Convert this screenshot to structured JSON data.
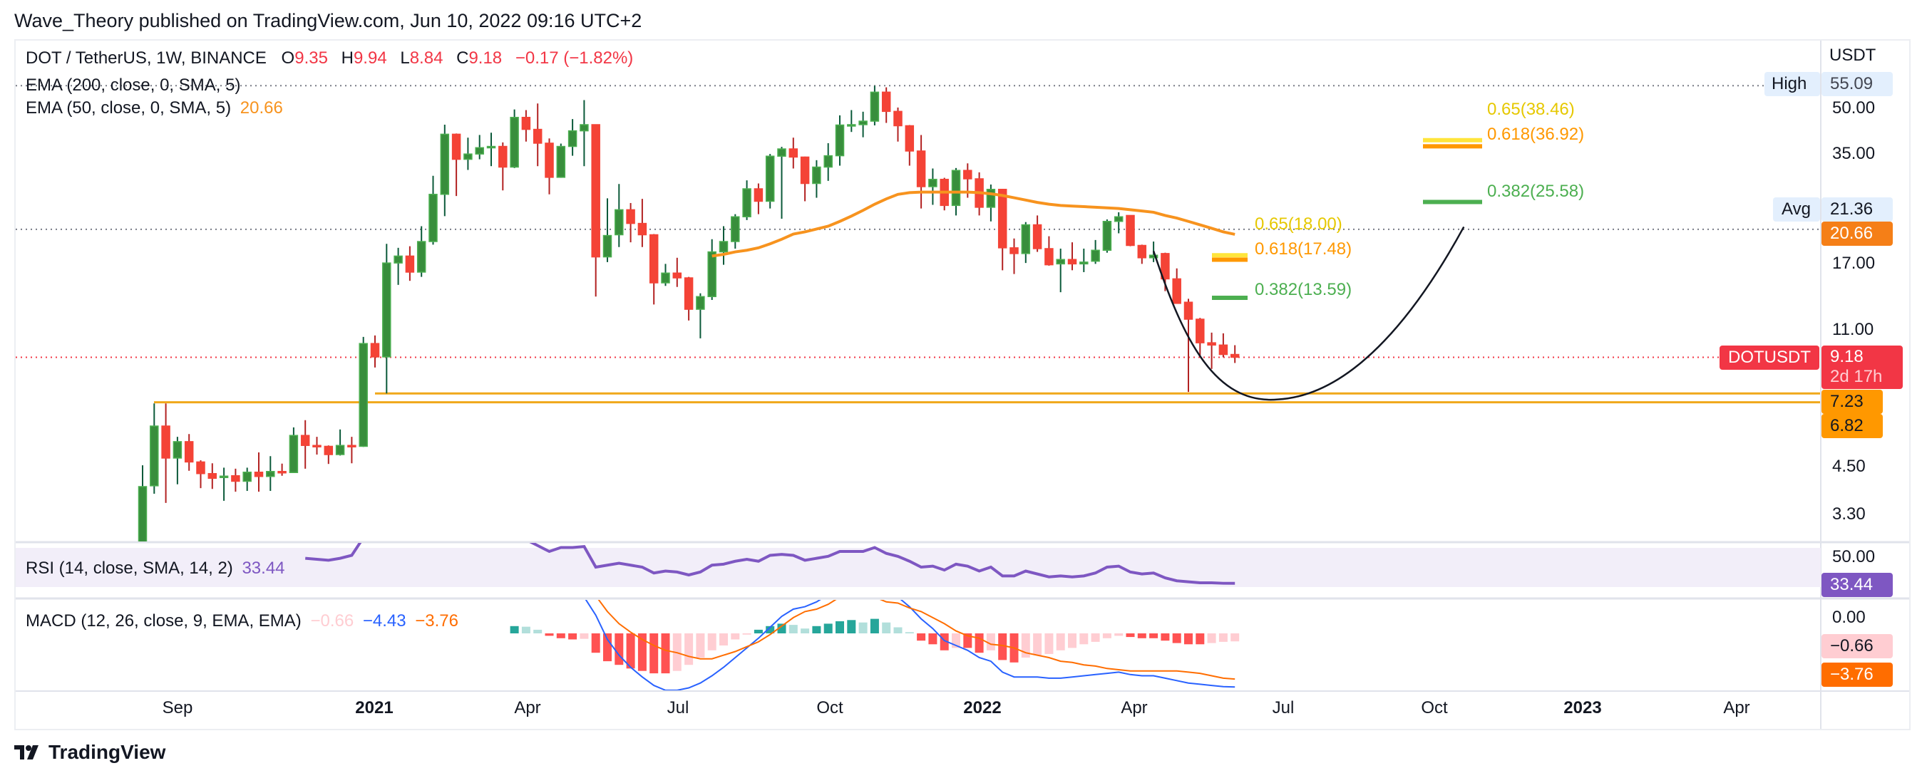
{
  "header": {
    "published": "Wave_Theory published on TradingView.com, Jun 10, 2022 09:16 UTC+2"
  },
  "legend": {
    "symbol": "DOT / TetherUS, 1W, BINANCE",
    "o_label": "O",
    "o": "9.35",
    "h_label": "H",
    "h": "9.94",
    "l_label": "L",
    "l": "8.84",
    "c_label": "C",
    "c": "9.18",
    "change": "−0.17 (−1.82%)",
    "ema200": "EMA (200, close, 0, SMA, 5)",
    "ema50": "EMA (50, close, 0, SMA, 5)",
    "ema50_value": "20.66",
    "rsi": "RSI (14, close, SMA, 14, 2)",
    "rsi_value": "33.44",
    "macd": "MACD (12, 26, close, 9, EMA, EMA)",
    "macd_hist": "−0.66",
    "macd_line": "−4.43",
    "macd_signal": "−3.76"
  },
  "price_axis": {
    "currency": "USDT",
    "ticks": [
      "50.00",
      "35.00",
      "17.00",
      "11.00",
      "4.50",
      "3.30"
    ],
    "high_label": "High",
    "high_value": "55.09",
    "avg_label": "Avg",
    "avg_value": "21.36",
    "ema_value": "20.66",
    "symbol_tag": "DOTUSDT",
    "last_price": "9.18",
    "countdown": "2d 17h",
    "level1": "7.23",
    "level2": "6.82",
    "rsi_tick": "50.00",
    "rsi_value": "33.44",
    "macd_tick": "0.00",
    "macd_hist": "−0.66",
    "macd_signal": "−3.76"
  },
  "time_axis": [
    {
      "label": "Sep",
      "bold": false
    },
    {
      "label": "2021",
      "bold": true
    },
    {
      "label": "Apr",
      "bold": false
    },
    {
      "label": "Jul",
      "bold": false
    },
    {
      "label": "Oct",
      "bold": false
    },
    {
      "label": "2022",
      "bold": true
    },
    {
      "label": "Apr",
      "bold": false
    },
    {
      "label": "Jul",
      "bold": false
    },
    {
      "label": "Oct",
      "bold": false
    },
    {
      "label": "2023",
      "bold": true
    },
    {
      "label": "Apr",
      "bold": false
    }
  ],
  "footer": {
    "brand": "TradingView"
  },
  "colors": {
    "up": "#388e3c",
    "down": "#f44336",
    "ema50": "#f7931e",
    "rsi": "#7e57c2",
    "macd": "#2962ff",
    "signal": "#ff6d00",
    "level": "#f0a81a",
    "fib065": "#ffe53b",
    "fib0618": "#ff9800",
    "fib0382": "#4caf50"
  },
  "chart_data": {
    "type": "candlestick",
    "title": "DOT / TetherUS, 1W, BINANCE",
    "y_scale": "log",
    "ylabel": "USDT",
    "candles_ohlc": [
      [
        2.7,
        4.5,
        2.6,
        3.91
      ],
      [
        3.93,
        6.77,
        3.73,
        5.83
      ],
      [
        5.83,
        6.77,
        3.51,
        4.72
      ],
      [
        4.72,
        5.43,
        3.97,
        5.26
      ],
      [
        5.26,
        5.53,
        4.34,
        4.6
      ],
      [
        4.6,
        4.65,
        3.87,
        4.26
      ],
      [
        4.26,
        4.56,
        3.85,
        4.13
      ],
      [
        4.15,
        4.43,
        3.56,
        4.19
      ],
      [
        4.2,
        4.4,
        3.78,
        4.05
      ],
      [
        4.05,
        4.43,
        3.8,
        4.3
      ],
      [
        4.3,
        4.9,
        3.78,
        4.18
      ],
      [
        4.18,
        4.78,
        3.8,
        4.32
      ],
      [
        4.32,
        4.55,
        4.2,
        4.3
      ],
      [
        4.29,
        5.78,
        4.28,
        5.48
      ],
      [
        5.48,
        6.06,
        4.4,
        5.13
      ],
      [
        5.13,
        5.43,
        4.83,
        5.1
      ],
      [
        5.1,
        5.13,
        4.54,
        4.83
      ],
      [
        4.83,
        5.7,
        4.8,
        5.13
      ],
      [
        5.13,
        5.43,
        4.56,
        5.1
      ],
      [
        5.1,
        10.5,
        5.08,
        10.05
      ],
      [
        10.05,
        10.6,
        8.58,
        9.2
      ],
      [
        9.2,
        19.4,
        7.23,
        17.1
      ],
      [
        17.1,
        18.9,
        14.8,
        17.9
      ],
      [
        17.9,
        19.1,
        15.2,
        16.1
      ],
      [
        16.1,
        21.8,
        15.6,
        19.7
      ],
      [
        19.7,
        30.4,
        19.3,
        26.9
      ],
      [
        26.9,
        42.6,
        23.3,
        40
      ],
      [
        40,
        40.2,
        26.6,
        33.9
      ],
      [
        33.9,
        39.1,
        31.6,
        35.1
      ],
      [
        35.1,
        39.8,
        33.9,
        36.6
      ],
      [
        36.6,
        40.4,
        32.4,
        36.9
      ],
      [
        36.9,
        37.9,
        27.6,
        32.2
      ],
      [
        32.2,
        47.1,
        32,
        44.7
      ],
      [
        44.7,
        46.9,
        38.1,
        41.3
      ],
      [
        41.3,
        49,
        32.4,
        37.7
      ],
      [
        37.7,
        38.9,
        26.9,
        30.1
      ],
      [
        30.1,
        37.6,
        30,
        36.9
      ],
      [
        36.9,
        44.2,
        34.7,
        40.9
      ],
      [
        40.9,
        50.1,
        32.4,
        42.6
      ],
      [
        42.6,
        42.7,
        13.7,
        17.8
      ],
      [
        17.8,
        26.2,
        17.2,
        20.5
      ],
      [
        20.6,
        28.8,
        19,
        24.3
      ],
      [
        24.3,
        25.4,
        19.6,
        22.2
      ],
      [
        22.2,
        26.1,
        19,
        20.6
      ],
      [
        20.6,
        20.7,
        13,
        15
      ],
      [
        15,
        17,
        14.7,
        16
      ],
      [
        16,
        17.7,
        14.6,
        15.5
      ],
      [
        15.5,
        15.6,
        11.7,
        12.6
      ],
      [
        12.6,
        14,
        10.4,
        13.7
      ],
      [
        13.7,
        20,
        13.4,
        18.4
      ],
      [
        18.4,
        21.8,
        16.9,
        19.7
      ],
      [
        19.7,
        23.6,
        18.8,
        23.2
      ],
      [
        23.2,
        29.5,
        22.7,
        27.9
      ],
      [
        27.9,
        28.9,
        23.6,
        25.7
      ],
      [
        25.7,
        35.1,
        24.5,
        34.6
      ],
      [
        34.6,
        36.8,
        22.9,
        36.3
      ],
      [
        36.3,
        39.1,
        31.9,
        34.4
      ],
      [
        34.4,
        34.5,
        25.7,
        28.9
      ],
      [
        28.9,
        33.7,
        26.3,
        32.2
      ],
      [
        32.2,
        37.7,
        29.4,
        34.7
      ],
      [
        34.7,
        45.3,
        32.5,
        42.5
      ],
      [
        42.5,
        46.9,
        40.6,
        42.6
      ],
      [
        42.6,
        46.4,
        39.2,
        43.6
      ],
      [
        43.6,
        55.09,
        42.4,
        52.8
      ],
      [
        52.8,
        54.5,
        43.1,
        46.5
      ],
      [
        46.5,
        47.7,
        38.1,
        42.3
      ],
      [
        42.3,
        42.5,
        32.5,
        35.8
      ],
      [
        35.8,
        39.8,
        24.5,
        28.3
      ],
      [
        28.3,
        31.9,
        25.1,
        29.7
      ],
      [
        29.7,
        30,
        24.2,
        25
      ],
      [
        25,
        32,
        23.4,
        31.5
      ],
      [
        31.5,
        33,
        26.3,
        29.8
      ],
      [
        29.8,
        31.1,
        23.4,
        24.7
      ],
      [
        24.7,
        28.7,
        22.5,
        27.8
      ],
      [
        27.8,
        27.9,
        16.3,
        18.9
      ],
      [
        18.9,
        20.1,
        15.9,
        18.2
      ],
      [
        18.2,
        22.4,
        17.1,
        22
      ],
      [
        22,
        23.4,
        18.4,
        18.8
      ],
      [
        18.8,
        20.4,
        16.8,
        16.9
      ],
      [
        17,
        18.8,
        14.1,
        17.5
      ],
      [
        17.5,
        19.6,
        16.3,
        17
      ],
      [
        17,
        18.8,
        16.1,
        17.2
      ],
      [
        17.3,
        19.9,
        17,
        18.6
      ],
      [
        18.6,
        22.8,
        18.3,
        22.5
      ],
      [
        22.5,
        23.9,
        20.8,
        23.2
      ],
      [
        23.4,
        23.4,
        19.1,
        19.2
      ],
      [
        19.2,
        19.3,
        17,
        17.7
      ],
      [
        17.7,
        19.7,
        17.2,
        18
      ],
      [
        18.2,
        18.3,
        14.2,
        15.4
      ],
      [
        15.4,
        16.5,
        13.1,
        13.1
      ],
      [
        13.2,
        13.5,
        7.3,
        11.8
      ],
      [
        11.8,
        11.9,
        9.2,
        10.1
      ],
      [
        10.1,
        10.8,
        8.5,
        9.95
      ],
      [
        9.95,
        10.75,
        9.18,
        9.35
      ],
      [
        9.35,
        9.94,
        8.84,
        9.18
      ]
    ],
    "ema50": {
      "start_index": 49,
      "values": [
        17.9,
        18.1,
        18.4,
        18.6,
        18.9,
        19.4,
        20.0,
        20.7,
        21.0,
        21.4,
        21.8,
        22.5,
        23.3,
        24.2,
        25.2,
        26.1,
        26.9,
        27.2,
        27.3,
        27.3,
        27.3,
        27.3,
        27.3,
        27.2,
        27.0,
        26.7,
        26.3,
        25.9,
        25.5,
        25.2,
        25.0,
        24.9,
        24.8,
        24.7,
        24.6,
        24.5,
        24.3,
        24.1,
        23.9,
        23.4,
        23.0,
        22.5,
        22.0,
        21.5,
        21.0,
        20.66
      ]
    },
    "high": 55.09,
    "avg": 21.36,
    "last": 9.18,
    "support_levels": [
      7.23,
      6.82
    ],
    "fib_sets": [
      {
        "levels": [
          {
            "ratio": "0.65",
            "price": 18.0,
            "label": "0.65(18.00)"
          },
          {
            "ratio": "0.618",
            "price": 17.48,
            "label": "0.618(17.48)"
          },
          {
            "ratio": "0.382",
            "price": 13.59,
            "label": "0.382(13.59)"
          }
        ]
      },
      {
        "levels": [
          {
            "ratio": "0.65",
            "price": 38.46,
            "label": "0.65(38.46)"
          },
          {
            "ratio": "0.618",
            "price": 36.92,
            "label": "0.618(36.92)"
          },
          {
            "ratio": "0.382",
            "price": 25.58,
            "label": "0.382(25.58)"
          }
        ]
      }
    ],
    "projection_curve": [
      {
        "week_index": 87,
        "price": 18.5
      },
      {
        "week_index": 97.7,
        "price": 6.95
      },
      {
        "week_index": 113.7,
        "price": 21.7
      }
    ],
    "rsi": {
      "start_index": 14,
      "values": [
        59,
        58,
        57,
        59,
        62,
        80,
        78,
        88,
        88,
        85,
        87,
        90,
        92,
        85,
        84,
        84,
        84,
        78,
        82,
        78,
        72,
        66,
        70,
        70,
        71,
        50,
        52,
        54,
        52,
        50,
        44,
        46,
        45,
        42,
        45,
        52,
        53,
        56,
        58,
        56,
        62,
        63,
        62,
        57,
        59,
        61,
        66,
        66,
        66,
        70,
        64,
        61,
        56,
        50,
        51,
        47,
        53,
        51,
        46,
        50,
        41,
        41,
        46,
        43,
        40,
        41,
        40,
        41,
        44,
        50,
        51,
        45,
        43,
        44,
        39,
        36,
        35,
        34,
        34,
        33.5,
        33.44
      ]
    },
    "macd": {
      "start_index": 32,
      "histogram": [
        0.6,
        0.55,
        0.3,
        -0.2,
        -0.4,
        -0.5,
        -0.45,
        -1.6,
        -2.3,
        -2.6,
        -2.9,
        -3.1,
        -3.3,
        -3.3,
        -3.1,
        -2.6,
        -2.0,
        -1.4,
        -1.0,
        -0.5,
        -0.1,
        0.3,
        0.6,
        0.8,
        0.7,
        0.4,
        0.6,
        0.8,
        1.0,
        1.1,
        0.9,
        1.2,
        0.9,
        0.5,
        0.1,
        -0.6,
        -0.9,
        -1.4,
        -1.2,
        -1.2,
        -1.6,
        -1.4,
        -2.2,
        -2.4,
        -2.0,
        -1.8,
        -1.7,
        -1.4,
        -1.2,
        -0.9,
        -0.7,
        -0.4,
        -0.2,
        -0.3,
        -0.4,
        -0.4,
        -0.6,
        -0.8,
        -0.9,
        -0.9,
        -0.8,
        -0.7,
        -0.66
      ],
      "macd": [
        7,
        7,
        6.5,
        5.5,
        5,
        4.5,
        3,
        1.5,
        -0.5,
        -1.8,
        -2.8,
        -3.6,
        -4.3,
        -4.7,
        -4.7,
        -4.5,
        -4.1,
        -3.5,
        -2.8,
        -2.0,
        -1.2,
        -0.4,
        0.5,
        1.4,
        2.0,
        2.2,
        2.6,
        3.2,
        4,
        4.5,
        4.5,
        4.2,
        3.5,
        3,
        2.2,
        1.2,
        0.4,
        -0.6,
        -1.0,
        -1.4,
        -2.0,
        -2.3,
        -3.2,
        -3.6,
        -3.6,
        -3.6,
        -3.7,
        -3.7,
        -3.6,
        -3.5,
        -3.4,
        -3.3,
        -3.2,
        -3.4,
        -3.5,
        -3.5,
        -3.7,
        -3.9,
        -4.1,
        -4.2,
        -4.3,
        -4.4,
        -4.43
      ]
    }
  }
}
